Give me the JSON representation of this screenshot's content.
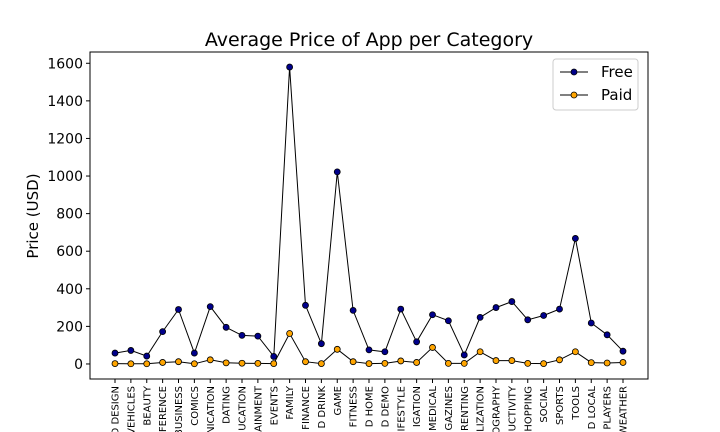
{
  "chart_data": {
    "type": "line",
    "title": "Average Price of App per Category",
    "xlabel": "",
    "ylabel": "Price (USD)",
    "ylim": [
      -80,
      1660
    ],
    "yticks": [
      0,
      200,
      400,
      600,
      800,
      1000,
      1200,
      1400,
      1600
    ],
    "grid": false,
    "legend_position": "top-right",
    "categories": [
      "ART AND DESIGN",
      "AUTO AND VEHICLES",
      "BEAUTY",
      "BOOKS AND REFERENCE",
      "BUSINESS",
      "COMICS",
      "COMMUNICATION",
      "DATING",
      "EDUCATION",
      "ENTERTAINMENT",
      "EVENTS",
      "FAMILY",
      "FINANCE",
      "FOOD AND DRINK",
      "GAME",
      "HEALTH AND FITNESS",
      "HOUSE AND HOME",
      "LIBRARIES AND DEMO",
      "LIFESTYLE",
      "MAPS AND NAVIGATION",
      "MEDICAL",
      "NEWS AND MAGAZINES",
      "PARENTING",
      "PERSONALIZATION",
      "PHOTOGRAPHY",
      "PRODUCTIVITY",
      "SHOPPING",
      "SOCIAL",
      "SPORTS",
      "TOOLS",
      "TRAVEL AND LOCAL",
      "VIDEO PLAYERS",
      "WEATHER"
    ],
    "tick_labels": [
      "D DESIGN",
      "VEHICLES",
      "BEAUTY",
      "EFERENCE",
      "BUSINESS",
      "COMICS",
      "NICATION",
      "DATING",
      "UCATION",
      "AINMENT",
      "EVENTS",
      "FAMILY",
      "FINANCE",
      "D DRINK",
      "GAME",
      "FITNESS",
      "D HOME",
      "D DEMO",
      "IFESTYLE",
      "IGATION",
      "MEDICAL",
      "GAZINES",
      "RENTING",
      "LIZATION",
      "OGRAPHY",
      "UCTIVITY",
      "HOPPING",
      "SOCIAL",
      "SPORTS",
      "TOOLS",
      "D LOCAL",
      "PLAYERS",
      "WEATHER"
    ],
    "series": [
      {
        "name": "Free",
        "color": "#00008b",
        "values": [
          58,
          72,
          42,
          172,
          290,
          58,
          305,
          195,
          152,
          148,
          40,
          1580,
          312,
          108,
          1022,
          285,
          75,
          65,
          292,
          118,
          262,
          230,
          48,
          248,
          300,
          332,
          235,
          258,
          292,
          668,
          218,
          155,
          68
        ]
      },
      {
        "name": "Paid",
        "color": "#ffa500",
        "values": [
          2,
          1,
          1,
          8,
          12,
          1,
          22,
          6,
          4,
          3,
          2,
          162,
          12,
          2,
          78,
          12,
          2,
          3,
          16,
          8,
          88,
          3,
          3,
          65,
          18,
          18,
          3,
          2,
          22,
          65,
          7,
          5,
          8
        ]
      }
    ]
  }
}
